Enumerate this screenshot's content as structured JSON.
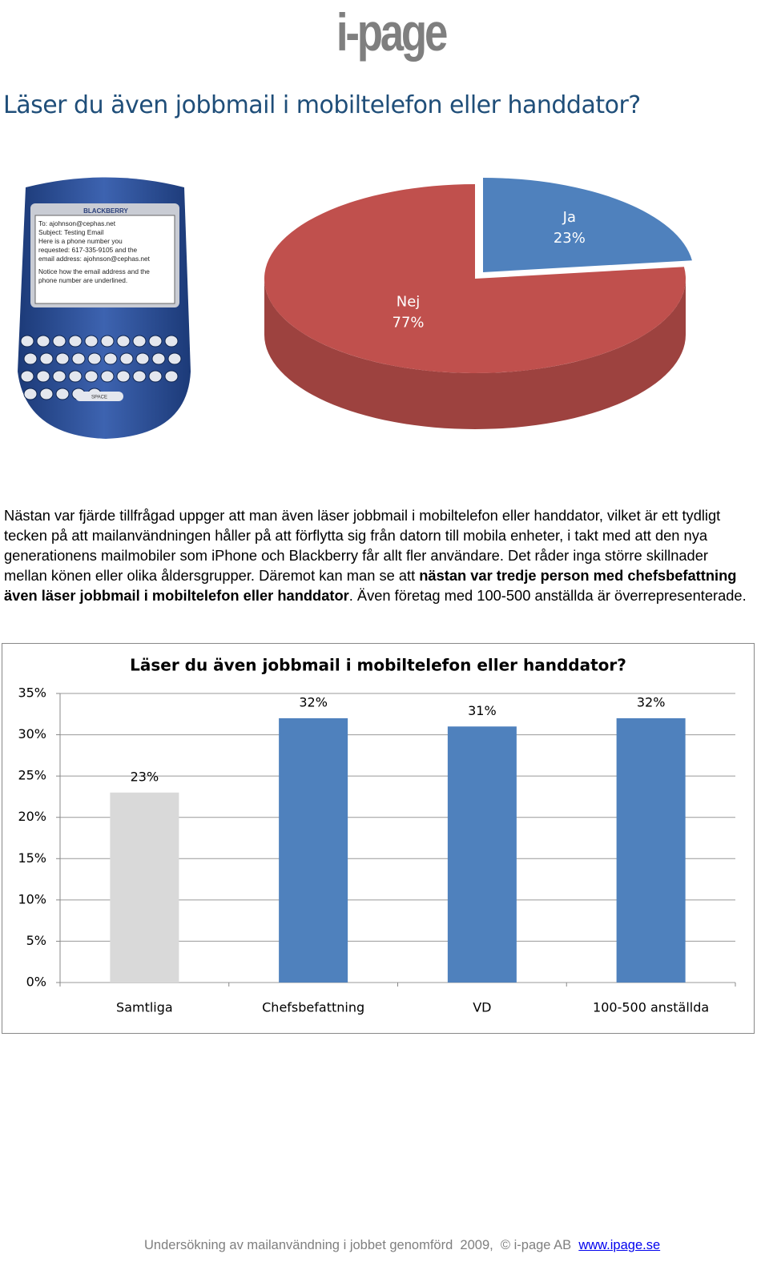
{
  "header": {
    "logo": "i-page",
    "title": "Läser du även jobbmail i mobiltelefon eller handdator?"
  },
  "phone": {
    "brand": "BLACKBERRY",
    "screen": [
      "To: ajohnson@cephas.net",
      "Subject: Testing Email",
      "Here is a phone number you",
      "requested: 617-335-9105 and the",
      "email address: ajohnson@cephas.net",
      "Notice how the email address and the",
      "phone number are underlined."
    ],
    "keys": [
      "SPACE"
    ]
  },
  "body": {
    "before": "Nästan var fjärde tillfrågad uppger att man även läser jobbmail i mobiltelefon eller handdator, vilket är ett tydligt tecken på att mailanvändningen håller på att förflytta sig från datorn till mobila enheter, i takt med att  den nya generationens mailmobiler som iPhone och Blackberry får allt fler användare. Det råder inga större skillnader mellan könen eller olika åldersgrupper. Däremot kan man se att ",
    "bold": "nästan var tredje person med chefsbefattning även läser jobbmail i mobiltelefon eller handdator",
    "after": ". Även företag med 100-500 anställda är överrepresenterade."
  },
  "chart_data": [
    {
      "type": "pie",
      "categories": [
        "Ja",
        "Nej"
      ],
      "values": [
        23,
        77
      ],
      "value_labels": [
        "23%",
        "77%"
      ],
      "colors": [
        "#4f81bd",
        "#c0504d"
      ]
    },
    {
      "type": "bar",
      "title": "Läser du även jobbmail i mobiltelefon eller handdator?",
      "categories": [
        "Samtliga",
        "Chefsbefattning",
        "VD",
        "100-500 anställda"
      ],
      "values": [
        23,
        32,
        31,
        32
      ],
      "value_labels": [
        "23%",
        "32%",
        "31%",
        "32%"
      ],
      "colors": [
        "#d9d9d9",
        "#4f81bd",
        "#4f81bd",
        "#4f81bd"
      ],
      "ylim": [
        0,
        35
      ],
      "yticks": [
        {
          "value": 0,
          "label": "0%"
        },
        {
          "value": 5,
          "label": "5%"
        },
        {
          "value": 10,
          "label": "10%"
        },
        {
          "value": 15,
          "label": "15%"
        },
        {
          "value": 20,
          "label": "20%"
        },
        {
          "value": 25,
          "label": "25%"
        },
        {
          "value": 30,
          "label": "30%"
        },
        {
          "value": 35,
          "label": "35%"
        }
      ],
      "grid": true
    }
  ],
  "footer": {
    "text": "Undersökning av mailanvändning i jobbet genomförd  2009,  © i-page AB",
    "link": "www.ipage.se"
  }
}
